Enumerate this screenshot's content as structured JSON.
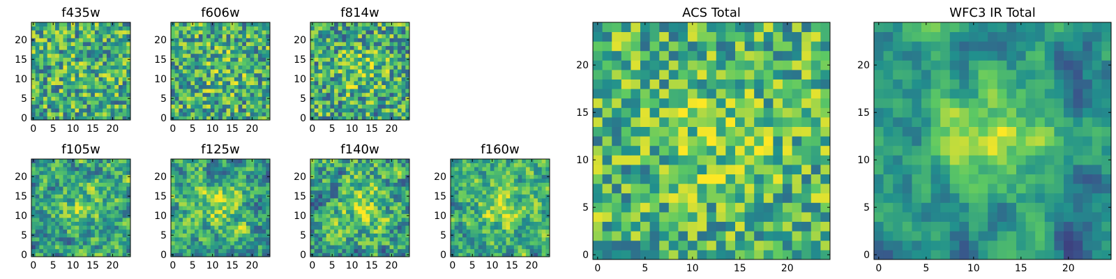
{
  "chart_data": [
    {
      "type": "heatmap",
      "title": "f435w",
      "grid_size": 25,
      "xticks": [
        "0",
        "5",
        "10",
        "15",
        "20"
      ],
      "yticks": [
        "0",
        "5",
        "10",
        "15",
        "20"
      ],
      "seed": 11,
      "smoothing": 0,
      "center_boost": 0.05,
      "mean": 0.62,
      "spread": 0.33
    },
    {
      "type": "heatmap",
      "title": "f606w",
      "grid_size": 25,
      "xticks": [
        "0",
        "5",
        "10",
        "15",
        "20"
      ],
      "yticks": [
        "0",
        "5",
        "10",
        "15",
        "20"
      ],
      "seed": 23,
      "smoothing": 0,
      "center_boost": 0.1,
      "mean": 0.62,
      "spread": 0.33
    },
    {
      "type": "heatmap",
      "title": "f814w",
      "grid_size": 25,
      "xticks": [
        "0",
        "5",
        "10",
        "15",
        "20"
      ],
      "yticks": [
        "0",
        "5",
        "10",
        "15",
        "20"
      ],
      "seed": 37,
      "smoothing": 0,
      "center_boost": 0.18,
      "mean": 0.6,
      "spread": 0.34
    },
    {
      "type": "heatmap",
      "title": "f105w",
      "grid_size": 25,
      "xticks": [
        "0",
        "5",
        "10",
        "15",
        "20"
      ],
      "yticks": [
        "0",
        "5",
        "10",
        "15",
        "20"
      ],
      "seed": 41,
      "smoothing": 1,
      "center_boost": 0.25,
      "mean": 0.58,
      "spread": 0.36
    },
    {
      "type": "heatmap",
      "title": "f125w",
      "grid_size": 25,
      "xticks": [
        "0",
        "5",
        "10",
        "15",
        "20"
      ],
      "yticks": [
        "0",
        "5",
        "10",
        "15",
        "20"
      ],
      "seed": 53,
      "smoothing": 1,
      "center_boost": 0.25,
      "mean": 0.6,
      "spread": 0.36
    },
    {
      "type": "heatmap",
      "title": "f140w",
      "grid_size": 25,
      "xticks": [
        "0",
        "5",
        "10",
        "15",
        "20"
      ],
      "yticks": [
        "0",
        "5",
        "10",
        "15",
        "20"
      ],
      "seed": 67,
      "smoothing": 1,
      "center_boost": 0.28,
      "mean": 0.58,
      "spread": 0.36
    },
    {
      "type": "heatmap",
      "title": "f160w",
      "grid_size": 25,
      "xticks": [
        "0",
        "5",
        "10",
        "15",
        "20"
      ],
      "yticks": [
        "0",
        "5",
        "10",
        "15",
        "20"
      ],
      "seed": 79,
      "smoothing": 1,
      "center_boost": 0.3,
      "mean": 0.6,
      "spread": 0.34
    },
    {
      "type": "heatmap",
      "title": "ACS Total",
      "grid_size": 25,
      "xticks": [
        "0",
        "5",
        "10",
        "15",
        "20"
      ],
      "yticks": [
        "0",
        "5",
        "10",
        "15",
        "20"
      ],
      "seed": 97,
      "smoothing": 0,
      "center_boost": 0.15,
      "mean": 0.66,
      "spread": 0.3
    },
    {
      "type": "heatmap",
      "title": "WFC3 IR Total",
      "grid_size": 25,
      "xticks": [
        "0",
        "5",
        "10",
        "15",
        "20"
      ],
      "yticks": [
        "0",
        "5",
        "10",
        "15",
        "20"
      ],
      "seed": 131,
      "smoothing": 2,
      "center_boost": 0.45,
      "mean": 0.5,
      "spread": 0.3
    }
  ],
  "colormap": [
    "#440154",
    "#3b528b",
    "#21908d",
    "#5dc963",
    "#fde725"
  ]
}
